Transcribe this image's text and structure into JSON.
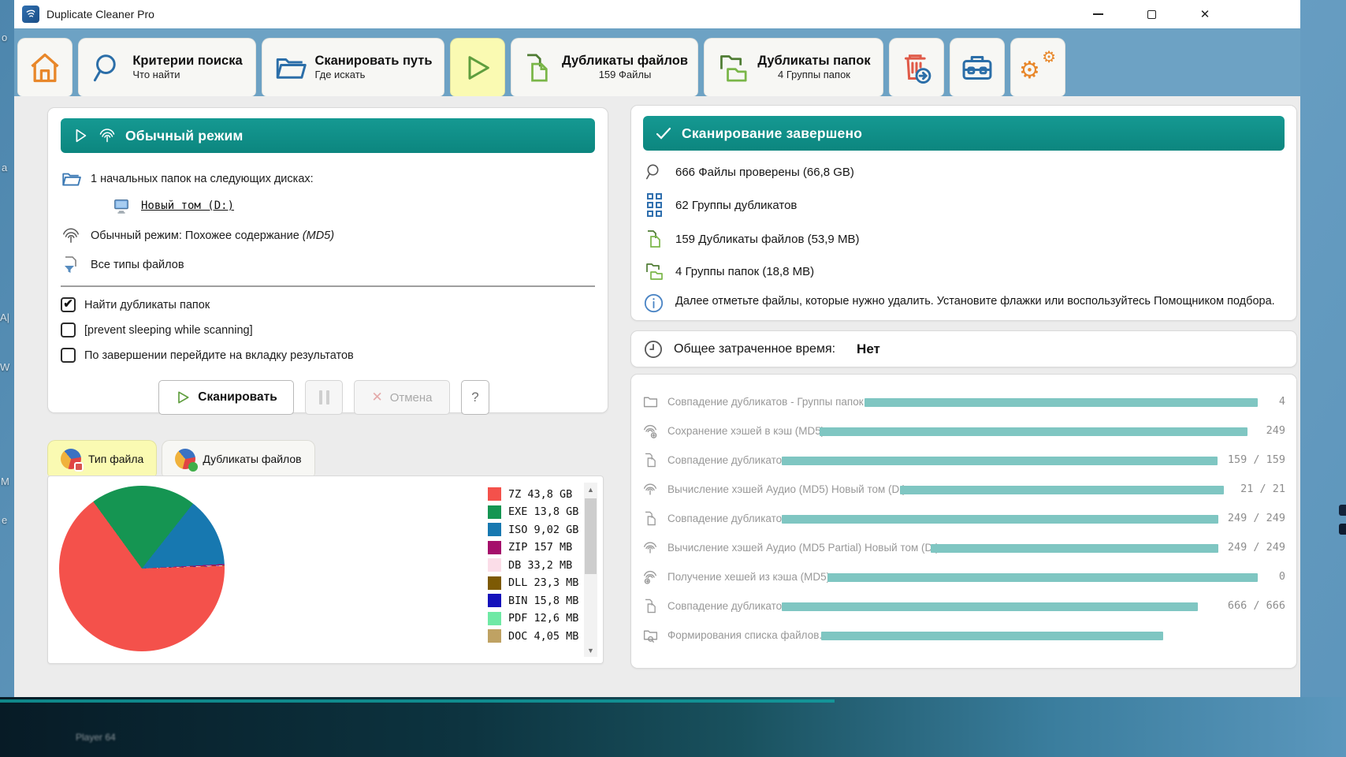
{
  "colors": {
    "teal": "#0c867f",
    "teal_light": "#159992",
    "bar": "#7fc6c2",
    "tab_strip": "#6da2c4",
    "active_tab": "#fafab2"
  },
  "window": {
    "title": "Duplicate Cleaner Pro"
  },
  "tabs": {
    "home": {
      "label": ""
    },
    "criteria": {
      "label": "Критерии поиска",
      "sub": "Что найти"
    },
    "scan_path": {
      "label": "Сканировать путь",
      "sub": "Где искать"
    },
    "run": {
      "label": ""
    },
    "dup_files": {
      "label": "Дубликаты файлов",
      "sub": "159 Файлы"
    },
    "dup_folders": {
      "label": "Дубликаты папок",
      "sub": "4 Группы папок"
    }
  },
  "scan_panel": {
    "header": "Обычный режим",
    "folders_line": "1 начальных папок на следующих дисках:",
    "drive_link": "Новый том (D:)",
    "mode_line": "Обычный режим: Похожее содержание",
    "mode_suffix": "(MD5)",
    "filetypes_line": "Все типы файлов",
    "checkboxes": [
      {
        "label": "Найти дубликаты папок",
        "checked": true
      },
      {
        "label": "[prevent sleeping while scanning]",
        "checked": false
      },
      {
        "label": "По завершении перейдите на вкладку результатов",
        "checked": false
      }
    ],
    "check_glyph": "✔",
    "scan_button": "Сканировать",
    "cancel_button": "Отмена",
    "cancel_x": "✕",
    "help_button": "?"
  },
  "chart_tabs": [
    {
      "label": "Тип файла",
      "active": true
    },
    {
      "label": "Дубликаты файлов",
      "active": false
    }
  ],
  "chart_data": {
    "type": "pie",
    "title": "Тип файла",
    "legend_position": "right",
    "start_angle_deg": -36,
    "draw_order": [
      "EXE",
      "ISO",
      "ZIP",
      "DB",
      "DLL",
      "BIN",
      "PDF",
      "DOC",
      "7Z"
    ],
    "slices": [
      {
        "label": "7Z",
        "display": "7Z 43,8 GB",
        "value_gb": 43.8,
        "color": "#f4514b"
      },
      {
        "label": "EXE",
        "display": "EXE 13,8 GB",
        "value_gb": 13.8,
        "color": "#159552"
      },
      {
        "label": "ISO",
        "display": "ISO 9,02 GB",
        "value_gb": 9.02,
        "color": "#1778b0"
      },
      {
        "label": "ZIP",
        "display": "ZIP 157 MB",
        "value_gb": 0.157,
        "color": "#a50f6b"
      },
      {
        "label": "DB",
        "display": "DB 33,2 MB",
        "value_gb": 0.0332,
        "color": "#fbdde8"
      },
      {
        "label": "DLL",
        "display": "DLL 23,3 MB",
        "value_gb": 0.0233,
        "color": "#7d5a04"
      },
      {
        "label": "BIN",
        "display": "BIN 15,8 MB",
        "value_gb": 0.0158,
        "color": "#1512bb"
      },
      {
        "label": "PDF",
        "display": "PDF 12,6 MB",
        "value_gb": 0.0126,
        "color": "#6fe9a5"
      },
      {
        "label": "DOC",
        "display": "DOC 4,05 MB",
        "value_gb": 0.00405,
        "color": "#bfa263"
      }
    ]
  },
  "results_panel": {
    "header": "Сканирование завершено",
    "stats": [
      {
        "text": "666 Файлы проверены (66,8 GB)"
      },
      {
        "text": "62 Группы дубликатов"
      },
      {
        "text": "159 Дубликаты файлов (53,9 MB)"
      },
      {
        "text": "4 Группы папок (18,8 MB)"
      }
    ],
    "info": "Далее отметьте файлы, которые нужно удалить. Установите флажки или воспользуйтесь Помощником подбора."
  },
  "time_panel": {
    "label": "Общее затраченное время:",
    "value": "Нет"
  },
  "progress": {
    "rows": [
      {
        "label": "Совпадение дубликатов - Группы папок",
        "value": "4",
        "bar": {
          "left_pct": 34.5,
          "width_pct": 60.8
        }
      },
      {
        "label": "Сохранение хэшей в кэш (MD5)",
        "value": "249",
        "bar": {
          "left_pct": 27.6,
          "width_pct": 66.1
        }
      },
      {
        "label": "Совпадение дубликатов",
        "value": "159 / 159",
        "bar": {
          "left_pct": 21.8,
          "width_pct": 67.3
        }
      },
      {
        "label": "Вычисление хэшей Аудио (MD5) Новый том (D:)",
        "value": "21 / 21",
        "bar": {
          "left_pct": 40.0,
          "width_pct": 50.0
        }
      },
      {
        "label": "Совпадение дубликатов",
        "value": "249 / 249",
        "bar": {
          "left_pct": 21.8,
          "width_pct": 67.4
        }
      },
      {
        "label": "Вычисление хэшей Аудио (MD5 Partial) Новый том (D:)",
        "value": "249 / 249",
        "bar": {
          "left_pct": 44.8,
          "width_pct": 44.4
        }
      },
      {
        "label": "Получение хешей из кэша (MD5)",
        "value": "0",
        "bar": {
          "left_pct": 28.8,
          "width_pct": 66.5
        }
      },
      {
        "label": "Совпадение дубликатов",
        "value": "666 / 666",
        "bar": {
          "left_pct": 21.8,
          "width_pct": 64.2
        }
      },
      {
        "label": "Формирования списка файлов...",
        "value": "",
        "bar": {
          "left_pct": 27.9,
          "width_pct": 52.7
        }
      }
    ]
  },
  "desktop_fragments": [
    "o",
    "a",
    "A|",
    "W",
    "М",
    "e",
    "Player 64"
  ]
}
